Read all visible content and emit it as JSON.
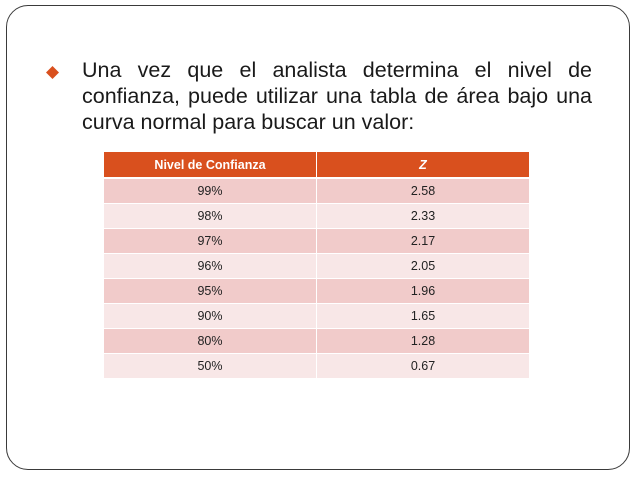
{
  "slide": {
    "bullet_text": "Una vez que el analista determina el nivel de confianza, puede utilizar una tabla de área bajo una curva normal para buscar un valor:",
    "bullet_icon": "diamond-bullet-icon",
    "accent_color": "#d9501e"
  },
  "table": {
    "headers": [
      "Nivel de Confianza",
      "Z"
    ],
    "rows": [
      [
        "99%",
        "2.58"
      ],
      [
        "98%",
        "2.33"
      ],
      [
        "97%",
        "2.17"
      ],
      [
        "96%",
        "2.05"
      ],
      [
        "95%",
        "1.96"
      ],
      [
        "90%",
        "1.65"
      ],
      [
        "80%",
        "1.28"
      ],
      [
        "50%",
        "0.67"
      ]
    ]
  }
}
